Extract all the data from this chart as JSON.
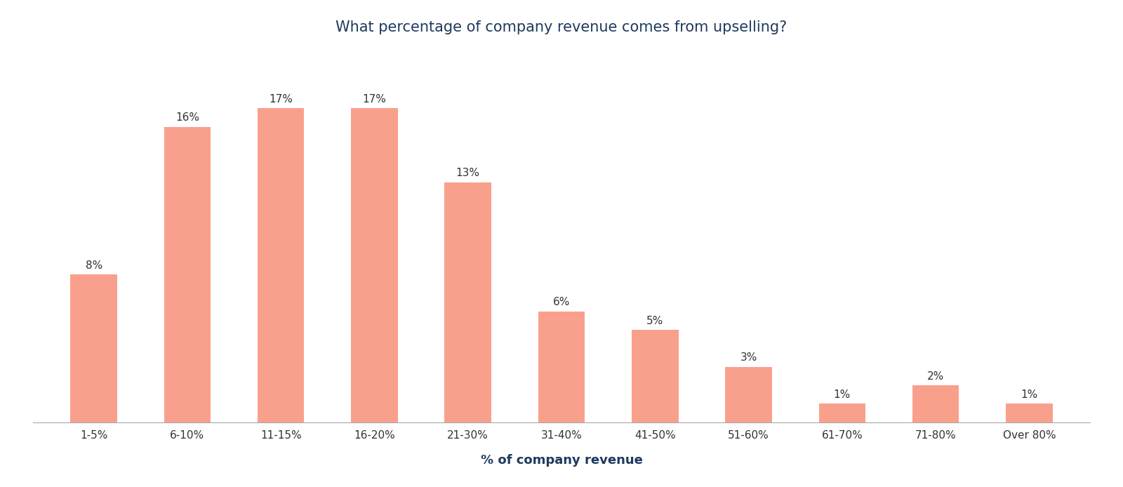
{
  "title": "What percentage of company revenue comes from upselling?",
  "xlabel": "% of company revenue",
  "categories": [
    "1-5%",
    "6-10%",
    "11-15%",
    "16-20%",
    "21-30%",
    "31-40%",
    "41-50%",
    "51-60%",
    "61-70%",
    "71-80%",
    "Over 80%"
  ],
  "values": [
    8,
    16,
    17,
    17,
    13,
    6,
    5,
    3,
    1,
    2,
    1
  ],
  "bar_color": "#F9A08C",
  "background_color": "#ffffff",
  "title_color": "#1e3a5f",
  "label_color": "#333333",
  "xlabel_color": "#1e3a5f",
  "grid_color": "#d8dde6",
  "axis_line_color": "#aaaaaa",
  "title_fontsize": 15,
  "label_fontsize": 11,
  "xlabel_fontsize": 13,
  "xtick_fontsize": 11,
  "ylim": [
    0,
    20
  ],
  "bar_width": 0.5
}
